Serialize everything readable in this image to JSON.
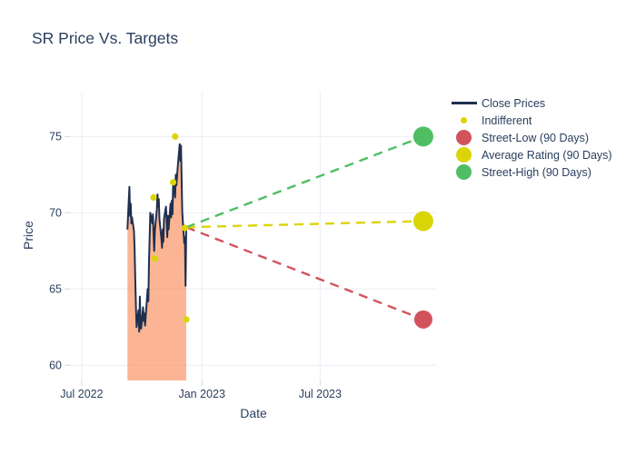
{
  "chart_data": {
    "type": "line",
    "title": "SR Price Vs. Targets",
    "xlabel": "Date",
    "ylabel": "Price",
    "x_range": [
      "2022-06-13",
      "2023-12-27"
    ],
    "y_range": [
      59,
      78
    ],
    "x_ticks": [
      {
        "date": "2022-07-01",
        "label": "Jul 2022"
      },
      {
        "date": "2023-01-01",
        "label": "Jan 2023"
      },
      {
        "date": "2023-07-01",
        "label": "Jul 2023"
      }
    ],
    "y_ticks": [
      60,
      65,
      70,
      75
    ],
    "grid": true,
    "legend_position": "right",
    "series": [
      {
        "name": "Close Prices",
        "type": "line+area",
        "color": "#202f4f",
        "fill_color": "rgba(247,120,60,0.55)",
        "dates": [
          "2022-09-09",
          "2022-09-12",
          "2022-09-13",
          "2022-09-14",
          "2022-09-15",
          "2022-09-16",
          "2022-09-19",
          "2022-09-20",
          "2022-09-21",
          "2022-09-22",
          "2022-09-23",
          "2022-09-26",
          "2022-09-27",
          "2022-09-28",
          "2022-09-29",
          "2022-09-30",
          "2022-10-03",
          "2022-10-04",
          "2022-10-05",
          "2022-10-06",
          "2022-10-07",
          "2022-10-10",
          "2022-10-11",
          "2022-10-12",
          "2022-10-13",
          "2022-10-14",
          "2022-10-17",
          "2022-10-18",
          "2022-10-19",
          "2022-10-20",
          "2022-10-21",
          "2022-10-24",
          "2022-10-25",
          "2022-10-26",
          "2022-10-27",
          "2022-10-28",
          "2022-10-31",
          "2022-11-01",
          "2022-11-02",
          "2022-11-03",
          "2022-11-04",
          "2022-11-07",
          "2022-11-08",
          "2022-11-09",
          "2022-11-10",
          "2022-11-11",
          "2022-11-14",
          "2022-11-15",
          "2022-11-16",
          "2022-11-17",
          "2022-11-18",
          "2022-11-21",
          "2022-11-22",
          "2022-11-23",
          "2022-11-25",
          "2022-11-28",
          "2022-11-29",
          "2022-11-30",
          "2022-12-01",
          "2022-12-02",
          "2022-12-05",
          "2022-12-06",
          "2022-12-07",
          "2022-12-08"
        ],
        "values": [
          68.9,
          71.7,
          69.8,
          70.6,
          69.3,
          69.7,
          68.8,
          67.6,
          65.6,
          63.9,
          62.5,
          63.6,
          62.2,
          64.5,
          63.0,
          62.4,
          63.8,
          62.9,
          63.4,
          62.6,
          63.2,
          65.0,
          64.2,
          66.8,
          68.4,
          70.0,
          69.3,
          69.9,
          68.6,
          67.5,
          68.8,
          70.2,
          71.2,
          70.4,
          70.9,
          69.6,
          68.3,
          67.7,
          68.9,
          68.1,
          69.6,
          70.4,
          69.5,
          68.4,
          69.8,
          68.9,
          70.6,
          69.7,
          70.8,
          69.9,
          72.0,
          71.0,
          72.5,
          71.8,
          73.0,
          74.5,
          73.4,
          74.4,
          72.1,
          70.0,
          68.0,
          68.4,
          65.2,
          69.05
        ]
      },
      {
        "name": "Indifferent",
        "type": "scatter",
        "color": "#dbd508",
        "marker_radius": 3.6,
        "dates": [
          "2022-10-19",
          "2022-10-21",
          "2022-11-18",
          "2022-11-21",
          "2022-12-06",
          "2022-12-08"
        ],
        "values": [
          71.0,
          67.0,
          72.0,
          75.0,
          69.0,
          63.0
        ]
      }
    ],
    "targets": {
      "origin": {
        "date": "2022-12-08",
        "value": 69.05
      },
      "target_date": "2023-12-06",
      "items": [
        {
          "name": "Street-Low (90 Days)",
          "value": 63.0,
          "color": "#d2525c",
          "radius": 10
        },
        {
          "name": "Average Rating (90 Days)",
          "value": 69.45,
          "color": "#dbd508",
          "radius": 11
        },
        {
          "name": "Street-High (90 Days)",
          "value": 75.0,
          "color": "#4fbe63",
          "radius": 11
        }
      ]
    }
  },
  "legend": {
    "items": [
      {
        "label": "Close Prices",
        "swatch": "line",
        "color": "#202f4f"
      },
      {
        "label": "Indifferent",
        "swatch": "dot",
        "color": "#dbd508"
      },
      {
        "label": "Street-Low (90 Days)",
        "swatch": "circle",
        "color": "#d2525c"
      },
      {
        "label": "Average Rating (90 Days)",
        "swatch": "circle",
        "color": "#dbd508"
      },
      {
        "label": "Street-High (90 Days)",
        "swatch": "circle",
        "color": "#4fbe63"
      }
    ]
  },
  "colors": {
    "background": "#ffffff",
    "text": "#2a3f5f",
    "grid": "#e9eef6",
    "tick": "#ccd6e4"
  }
}
